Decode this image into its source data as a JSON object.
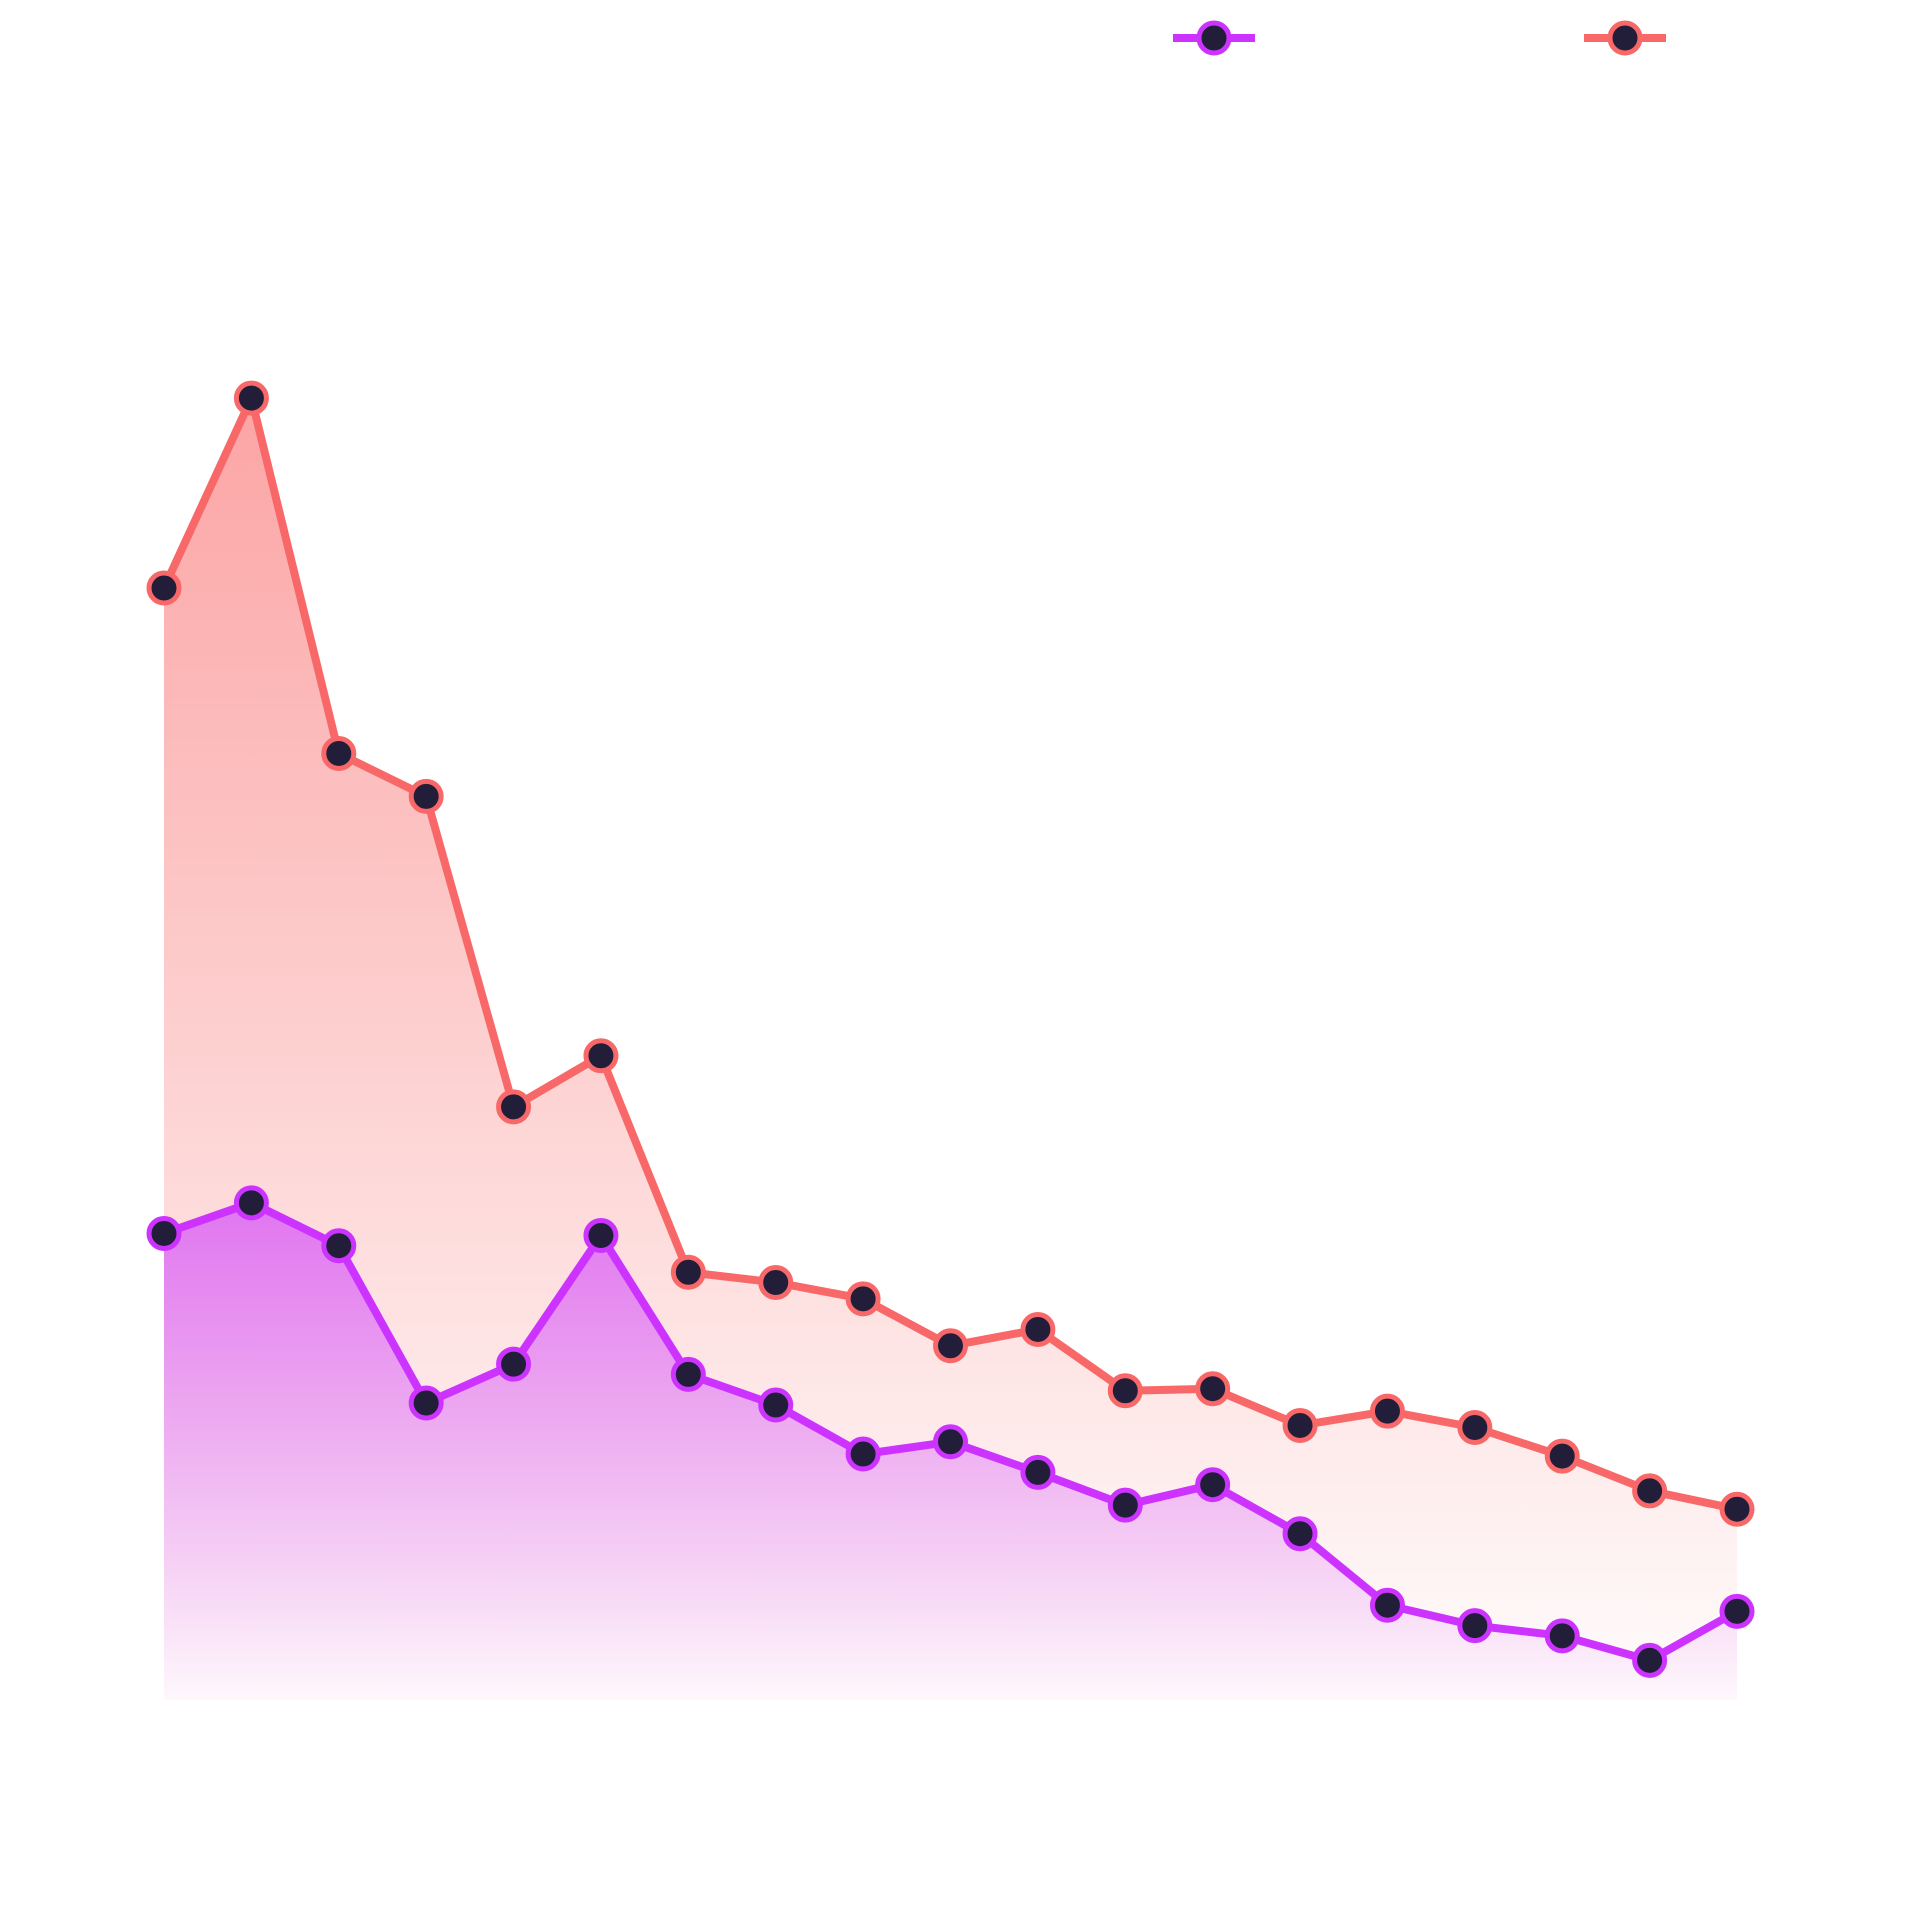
{
  "chart_data": {
    "type": "line",
    "categories": [
      null,
      null,
      null,
      null,
      null,
      null,
      null,
      null,
      null,
      null,
      null,
      null,
      null,
      null,
      null,
      null,
      null,
      null,
      null
    ],
    "series": [
      {
        "color": "#cc33ff",
        "values": [
          24.8,
          26.3,
          24.2,
          16.5,
          18.4,
          24.7,
          17.9,
          16.4,
          14.0,
          14.6,
          13.1,
          11.5,
          12.5,
          10.1,
          6.6,
          5.6,
          5.1,
          3.9,
          6.3
        ]
      },
      {
        "color": "#f96868",
        "values": [
          56.4,
          65.7,
          48.3,
          46.2,
          31.0,
          33.5,
          22.9,
          22.4,
          21.6,
          19.3,
          20.1,
          17.1,
          17.2,
          15.4,
          16.1,
          15.3,
          13.9,
          12.2,
          11.3
        ]
      }
    ],
    "ylim": [
      0,
      80
    ],
    "area": true,
    "marker_fill": "#221e3a"
  }
}
